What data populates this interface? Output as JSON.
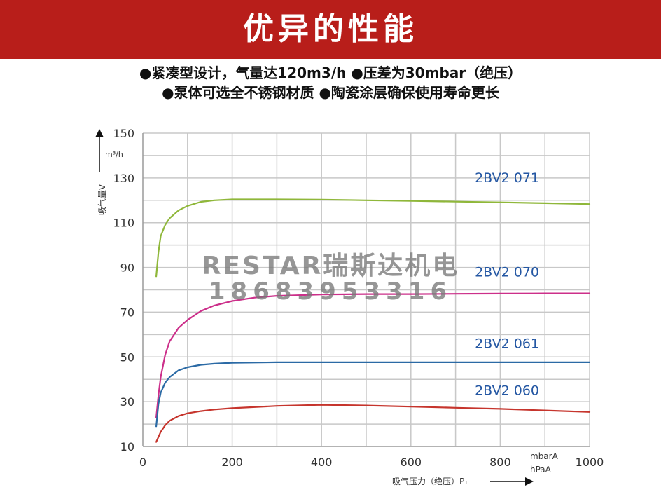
{
  "header": {
    "title": "优异的性能"
  },
  "features": [
    "●紧凑型设计，气量达120m3/h ●压差为30mbar（绝压）",
    "●泵体可选全不锈钢材质 ●陶瓷涂层确保使用寿命更长"
  ],
  "watermark": {
    "line1": "RESTAR瑞斯达机电",
    "line2": "18683953316"
  },
  "chart_data": {
    "type": "line",
    "title": "",
    "ylabel": "吸气量V",
    "yunit": "m³/h",
    "xlabel": "吸气压力（绝压）P₁",
    "xunit_1": "mbarA",
    "xunit_2": "hPaA",
    "xlim": [
      0,
      1000
    ],
    "ylim": [
      10,
      150
    ],
    "xticks": [
      0,
      200,
      400,
      600,
      800,
      1000
    ],
    "yticks": [
      10,
      30,
      50,
      70,
      90,
      110,
      130,
      150
    ],
    "grid": true,
    "series": [
      {
        "name": "2BV2 071",
        "color": "#8fb73a",
        "x": [
          30,
          35,
          40,
          50,
          60,
          80,
          100,
          130,
          160,
          200,
          300,
          400,
          500,
          600,
          700,
          800,
          900,
          1000
        ],
        "y": [
          86,
          97,
          104,
          109,
          112,
          115.5,
          117.5,
          119.3,
          120,
          120.4,
          120.4,
          120.3,
          120,
          119.7,
          119.4,
          119.1,
          118.7,
          118.3
        ]
      },
      {
        "name": "2BV2 070",
        "color": "#cc2f8a",
        "x": [
          30,
          35,
          40,
          50,
          60,
          80,
          100,
          130,
          160,
          200,
          250,
          300,
          400,
          500,
          600,
          700,
          800,
          900,
          1000
        ],
        "y": [
          23,
          33,
          41,
          51,
          57,
          63,
          66.5,
          70.5,
          73,
          75,
          76.5,
          77.3,
          77.9,
          78.1,
          78.1,
          78.2,
          78.3,
          78.4,
          78.4
        ]
      },
      {
        "name": "2BV2 061",
        "color": "#2b6aa5",
        "x": [
          30,
          35,
          40,
          50,
          60,
          80,
          100,
          130,
          160,
          200,
          300,
          400,
          500,
          600,
          700,
          800,
          900,
          1000
        ],
        "y": [
          19,
          29,
          34,
          38.5,
          41,
          44,
          45.4,
          46.5,
          47,
          47.4,
          47.6,
          47.6,
          47.6,
          47.6,
          47.6,
          47.6,
          47.6,
          47.6
        ]
      },
      {
        "name": "2BV2 060",
        "color": "#c6352d",
        "x": [
          30,
          40,
          50,
          60,
          80,
          100,
          130,
          160,
          200,
          300,
          400,
          500,
          600,
          700,
          800,
          900,
          1000
        ],
        "y": [
          12,
          16.5,
          19.5,
          21.5,
          23.6,
          24.8,
          25.8,
          26.5,
          27.1,
          28.1,
          28.6,
          28.3,
          27.8,
          27.3,
          26.8,
          26.1,
          25.4
        ]
      }
    ]
  }
}
